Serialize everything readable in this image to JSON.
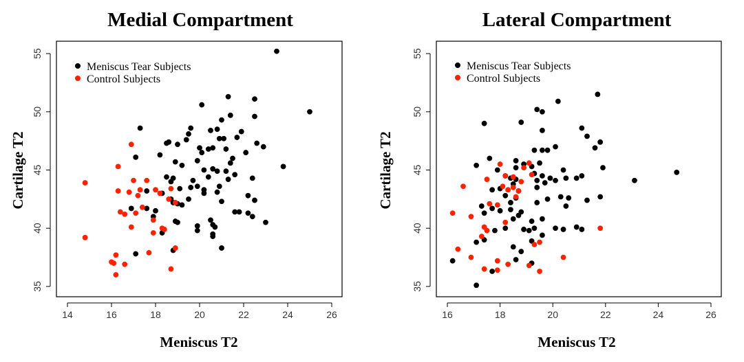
{
  "chart_data": [
    {
      "type": "scatter",
      "title": "Medial Compartment",
      "xlabel": "Meniscus T2",
      "ylabel": "Cartilage T2",
      "xlim": [
        14,
        26
      ],
      "ylim": [
        35,
        55
      ],
      "xticks": [
        14,
        16,
        18,
        20,
        22,
        24,
        26
      ],
      "yticks": [
        35,
        40,
        45,
        50,
        55
      ],
      "grid": false,
      "legend_position": "top-left",
      "series": [
        {
          "name": "Meniscus Tear Subjects",
          "color": "#000000",
          "points": [
            [
              23.5,
              55.2
            ],
            [
              25.0,
              50.0
            ],
            [
              21.3,
              51.3
            ],
            [
              22.5,
              51.1
            ],
            [
              20.1,
              50.6
            ],
            [
              21.4,
              49.7
            ],
            [
              21.0,
              49.3
            ],
            [
              22.5,
              49.6
            ],
            [
              17.3,
              48.6
            ],
            [
              19.6,
              48.6
            ],
            [
              20.5,
              48.4
            ],
            [
              20.8,
              48.5
            ],
            [
              21.9,
              48.3
            ],
            [
              21.7,
              47.8
            ],
            [
              20.9,
              47.7
            ],
            [
              21.1,
              47.7
            ],
            [
              19.5,
              48.1
            ],
            [
              19.4,
              47.6
            ],
            [
              19.0,
              47.2
            ],
            [
              18.6,
              47.4
            ],
            [
              18.5,
              47.3
            ],
            [
              18.2,
              46.3
            ],
            [
              20.0,
              46.9
            ],
            [
              20.4,
              46.8
            ],
            [
              20.6,
              46.9
            ],
            [
              21.2,
              46.8
            ],
            [
              22.1,
              46.5
            ],
            [
              22.6,
              47.3
            ],
            [
              22.9,
              47.0
            ],
            [
              20.1,
              46.5
            ],
            [
              19.2,
              45.4
            ],
            [
              19.9,
              45.8
            ],
            [
              21.5,
              46.0
            ],
            [
              21.4,
              45.6
            ],
            [
              17.1,
              46.1
            ],
            [
              20.2,
              45.0
            ],
            [
              20.6,
              45.1
            ],
            [
              20.8,
              44.9
            ],
            [
              21.2,
              44.9
            ],
            [
              20.4,
              44.4
            ],
            [
              21.3,
              44.2
            ],
            [
              21.6,
              44.6
            ],
            [
              18.9,
              45.7
            ],
            [
              18.8,
              44.3
            ],
            [
              18.5,
              44.4
            ],
            [
              18.7,
              44.0
            ],
            [
              19.7,
              44.1
            ],
            [
              19.9,
              43.6
            ],
            [
              19.6,
              43.5
            ],
            [
              20.2,
              43.3
            ],
            [
              20.2,
              43.0
            ],
            [
              20.9,
              43.6
            ],
            [
              20.8,
              43.1
            ],
            [
              21.0,
              42.3
            ],
            [
              19.1,
              43.4
            ],
            [
              18.3,
              43.0
            ],
            [
              17.6,
              43.2
            ],
            [
              18.7,
              42.5
            ],
            [
              19.5,
              42.5
            ],
            [
              22.4,
              44.3
            ],
            [
              23.8,
              45.3
            ],
            [
              22.5,
              42.4
            ],
            [
              22.2,
              42.8
            ],
            [
              21.8,
              41.4
            ],
            [
              21.6,
              41.4
            ],
            [
              22.2,
              41.3
            ],
            [
              22.4,
              41.0
            ],
            [
              19.0,
              42.1
            ],
            [
              19.2,
              42.0
            ],
            [
              18.8,
              42.2
            ],
            [
              18.0,
              41.5
            ],
            [
              17.9,
              41.0
            ],
            [
              17.6,
              41.7
            ],
            [
              19.9,
              40.2
            ],
            [
              20.5,
              40.7
            ],
            [
              20.6,
              40.3
            ],
            [
              20.7,
              40.1
            ],
            [
              20.6,
              39.5
            ],
            [
              19.0,
              40.5
            ],
            [
              18.9,
              40.6
            ],
            [
              21.0,
              38.3
            ],
            [
              20.6,
              39.3
            ],
            [
              23.0,
              40.5
            ],
            [
              19.9,
              39.8
            ],
            [
              17.1,
              37.8
            ],
            [
              18.8,
              38.1
            ],
            [
              18.3,
              39.6
            ],
            [
              16.9,
              41.7
            ]
          ]
        },
        {
          "name": "Control Subjects",
          "color": "#ff2200",
          "points": [
            [
              16.9,
              47.2
            ],
            [
              16.3,
              45.3
            ],
            [
              14.8,
              43.9
            ],
            [
              17.0,
              44.1
            ],
            [
              17.6,
              44.1
            ],
            [
              17.3,
              43.3
            ],
            [
              16.3,
              43.2
            ],
            [
              16.8,
              43.1
            ],
            [
              17.2,
              42.8
            ],
            [
              18.0,
              43.3
            ],
            [
              18.6,
              42.5
            ],
            [
              18.7,
              43.4
            ],
            [
              18.2,
              43.0
            ],
            [
              16.4,
              41.4
            ],
            [
              16.6,
              41.2
            ],
            [
              17.1,
              41.3
            ],
            [
              16.9,
              40.1
            ],
            [
              17.4,
              41.8
            ],
            [
              18.9,
              42.2
            ],
            [
              17.9,
              40.7
            ],
            [
              17.9,
              39.6
            ],
            [
              18.3,
              40.0
            ],
            [
              14.8,
              39.2
            ],
            [
              16.2,
              37.7
            ],
            [
              17.7,
              37.9
            ],
            [
              16.0,
              37.1
            ],
            [
              16.1,
              37.0
            ],
            [
              16.6,
              36.9
            ],
            [
              16.2,
              36.0
            ],
            [
              18.7,
              36.5
            ],
            [
              18.9,
              38.3
            ],
            [
              18.4,
              39.9
            ]
          ]
        }
      ]
    },
    {
      "type": "scatter",
      "title": "Lateral Compartment",
      "xlabel": "Meniscus T2",
      "ylabel": "Cartilage T2",
      "xlim": [
        16,
        26
      ],
      "ylim": [
        35,
        55
      ],
      "xticks": [
        16,
        18,
        20,
        22,
        24,
        26
      ],
      "yticks": [
        35,
        40,
        45,
        50,
        55
      ],
      "grid": false,
      "legend_position": "top-left",
      "series": [
        {
          "name": "Meniscus Tear Subjects",
          "color": "#000000",
          "points": [
            [
              21.7,
              51.5
            ],
            [
              20.2,
              50.9
            ],
            [
              19.4,
              50.2
            ],
            [
              19.6,
              50.0
            ],
            [
              17.4,
              49.0
            ],
            [
              18.8,
              49.1
            ],
            [
              21.1,
              48.6
            ],
            [
              21.3,
              47.9
            ],
            [
              21.8,
              47.4
            ],
            [
              19.6,
              48.4
            ],
            [
              21.6,
              46.9
            ],
            [
              20.1,
              47.0
            ],
            [
              19.3,
              46.7
            ],
            [
              19.6,
              46.7
            ],
            [
              19.8,
              46.7
            ],
            [
              17.6,
              46.0
            ],
            [
              18.6,
              45.8
            ],
            [
              18.6,
              45.2
            ],
            [
              19.2,
              45.3
            ],
            [
              19.5,
              45.6
            ],
            [
              18.9,
              45.5
            ],
            [
              19.3,
              44.7
            ],
            [
              19.9,
              44.3
            ],
            [
              20.4,
              45.0
            ],
            [
              21.9,
              45.2
            ],
            [
              18.2,
              44.5
            ],
            [
              18.4,
              44.3
            ],
            [
              18.6,
              44.2
            ],
            [
              18.5,
              43.8
            ],
            [
              19.4,
              44.1
            ],
            [
              19.6,
              44.5
            ],
            [
              20.1,
              44.1
            ],
            [
              20.5,
              44.3
            ],
            [
              20.9,
              44.3
            ],
            [
              21.1,
              44.5
            ],
            [
              17.9,
              45.0
            ],
            [
              17.1,
              45.4
            ],
            [
              17.7,
              43.3
            ],
            [
              18.0,
              43.4
            ],
            [
              18.7,
              43.2
            ],
            [
              19.4,
              43.5
            ],
            [
              19.7,
              43.9
            ],
            [
              24.7,
              44.8
            ],
            [
              23.1,
              44.1
            ],
            [
              18.2,
              42.8
            ],
            [
              18.6,
              42.6
            ],
            [
              18.4,
              42.2
            ],
            [
              17.7,
              41.7
            ],
            [
              18.0,
              41.5
            ],
            [
              18.4,
              41.6
            ],
            [
              18.8,
              41.4
            ],
            [
              18.7,
              41.1
            ],
            [
              19.4,
              42.2
            ],
            [
              19.8,
              42.5
            ],
            [
              20.3,
              42.7
            ],
            [
              20.5,
              41.9
            ],
            [
              20.6,
              42.6
            ],
            [
              21.3,
              42.4
            ],
            [
              21.8,
              42.7
            ],
            [
              17.4,
              41.3
            ],
            [
              17.3,
              41.9
            ],
            [
              18.5,
              40.8
            ],
            [
              19.2,
              40.6
            ],
            [
              19.6,
              40.8
            ],
            [
              19.3,
              40.0
            ],
            [
              20.1,
              40.0
            ],
            [
              20.4,
              39.9
            ],
            [
              20.9,
              40.1
            ],
            [
              17.8,
              39.8
            ],
            [
              18.2,
              40.0
            ],
            [
              18.9,
              39.9
            ],
            [
              17.4,
              39.0
            ],
            [
              17.1,
              38.8
            ],
            [
              18.5,
              38.4
            ],
            [
              18.8,
              38.0
            ],
            [
              19.2,
              38.9
            ],
            [
              18.6,
              37.3
            ],
            [
              19.2,
              37.0
            ],
            [
              16.2,
              37.2
            ],
            [
              17.7,
              36.3
            ],
            [
              17.1,
              35.1
            ],
            [
              19.1,
              39.8
            ],
            [
              19.6,
              39.4
            ],
            [
              21.1,
              39.9
            ]
          ]
        },
        {
          "name": "Control Subjects",
          "color": "#ff2200",
          "points": [
            [
              16.6,
              43.6
            ],
            [
              17.5,
              44.2
            ],
            [
              18.0,
              45.5
            ],
            [
              18.2,
              44.5
            ],
            [
              18.5,
              44.4
            ],
            [
              18.9,
              45.2
            ],
            [
              19.1,
              45.6
            ],
            [
              18.3,
              43.3
            ],
            [
              18.5,
              43.5
            ],
            [
              18.7,
              43.2
            ],
            [
              18.6,
              42.7
            ],
            [
              19.2,
              44.6
            ],
            [
              18.8,
              44.0
            ],
            [
              18.1,
              43.6
            ],
            [
              17.6,
              42.1
            ],
            [
              17.9,
              42.0
            ],
            [
              16.2,
              41.3
            ],
            [
              16.9,
              41.0
            ],
            [
              17.4,
              40.1
            ],
            [
              17.5,
              39.8
            ],
            [
              18.2,
              40.5
            ],
            [
              17.3,
              39.3
            ],
            [
              16.4,
              38.2
            ],
            [
              16.9,
              37.5
            ],
            [
              17.9,
              37.2
            ],
            [
              17.9,
              36.4
            ],
            [
              18.3,
              36.9
            ],
            [
              19.1,
              36.8
            ],
            [
              19.5,
              36.3
            ],
            [
              19.3,
              38.6
            ],
            [
              19.5,
              38.8
            ],
            [
              20.4,
              37.5
            ],
            [
              21.8,
              40.0
            ],
            [
              17.4,
              36.5
            ]
          ]
        }
      ]
    }
  ]
}
